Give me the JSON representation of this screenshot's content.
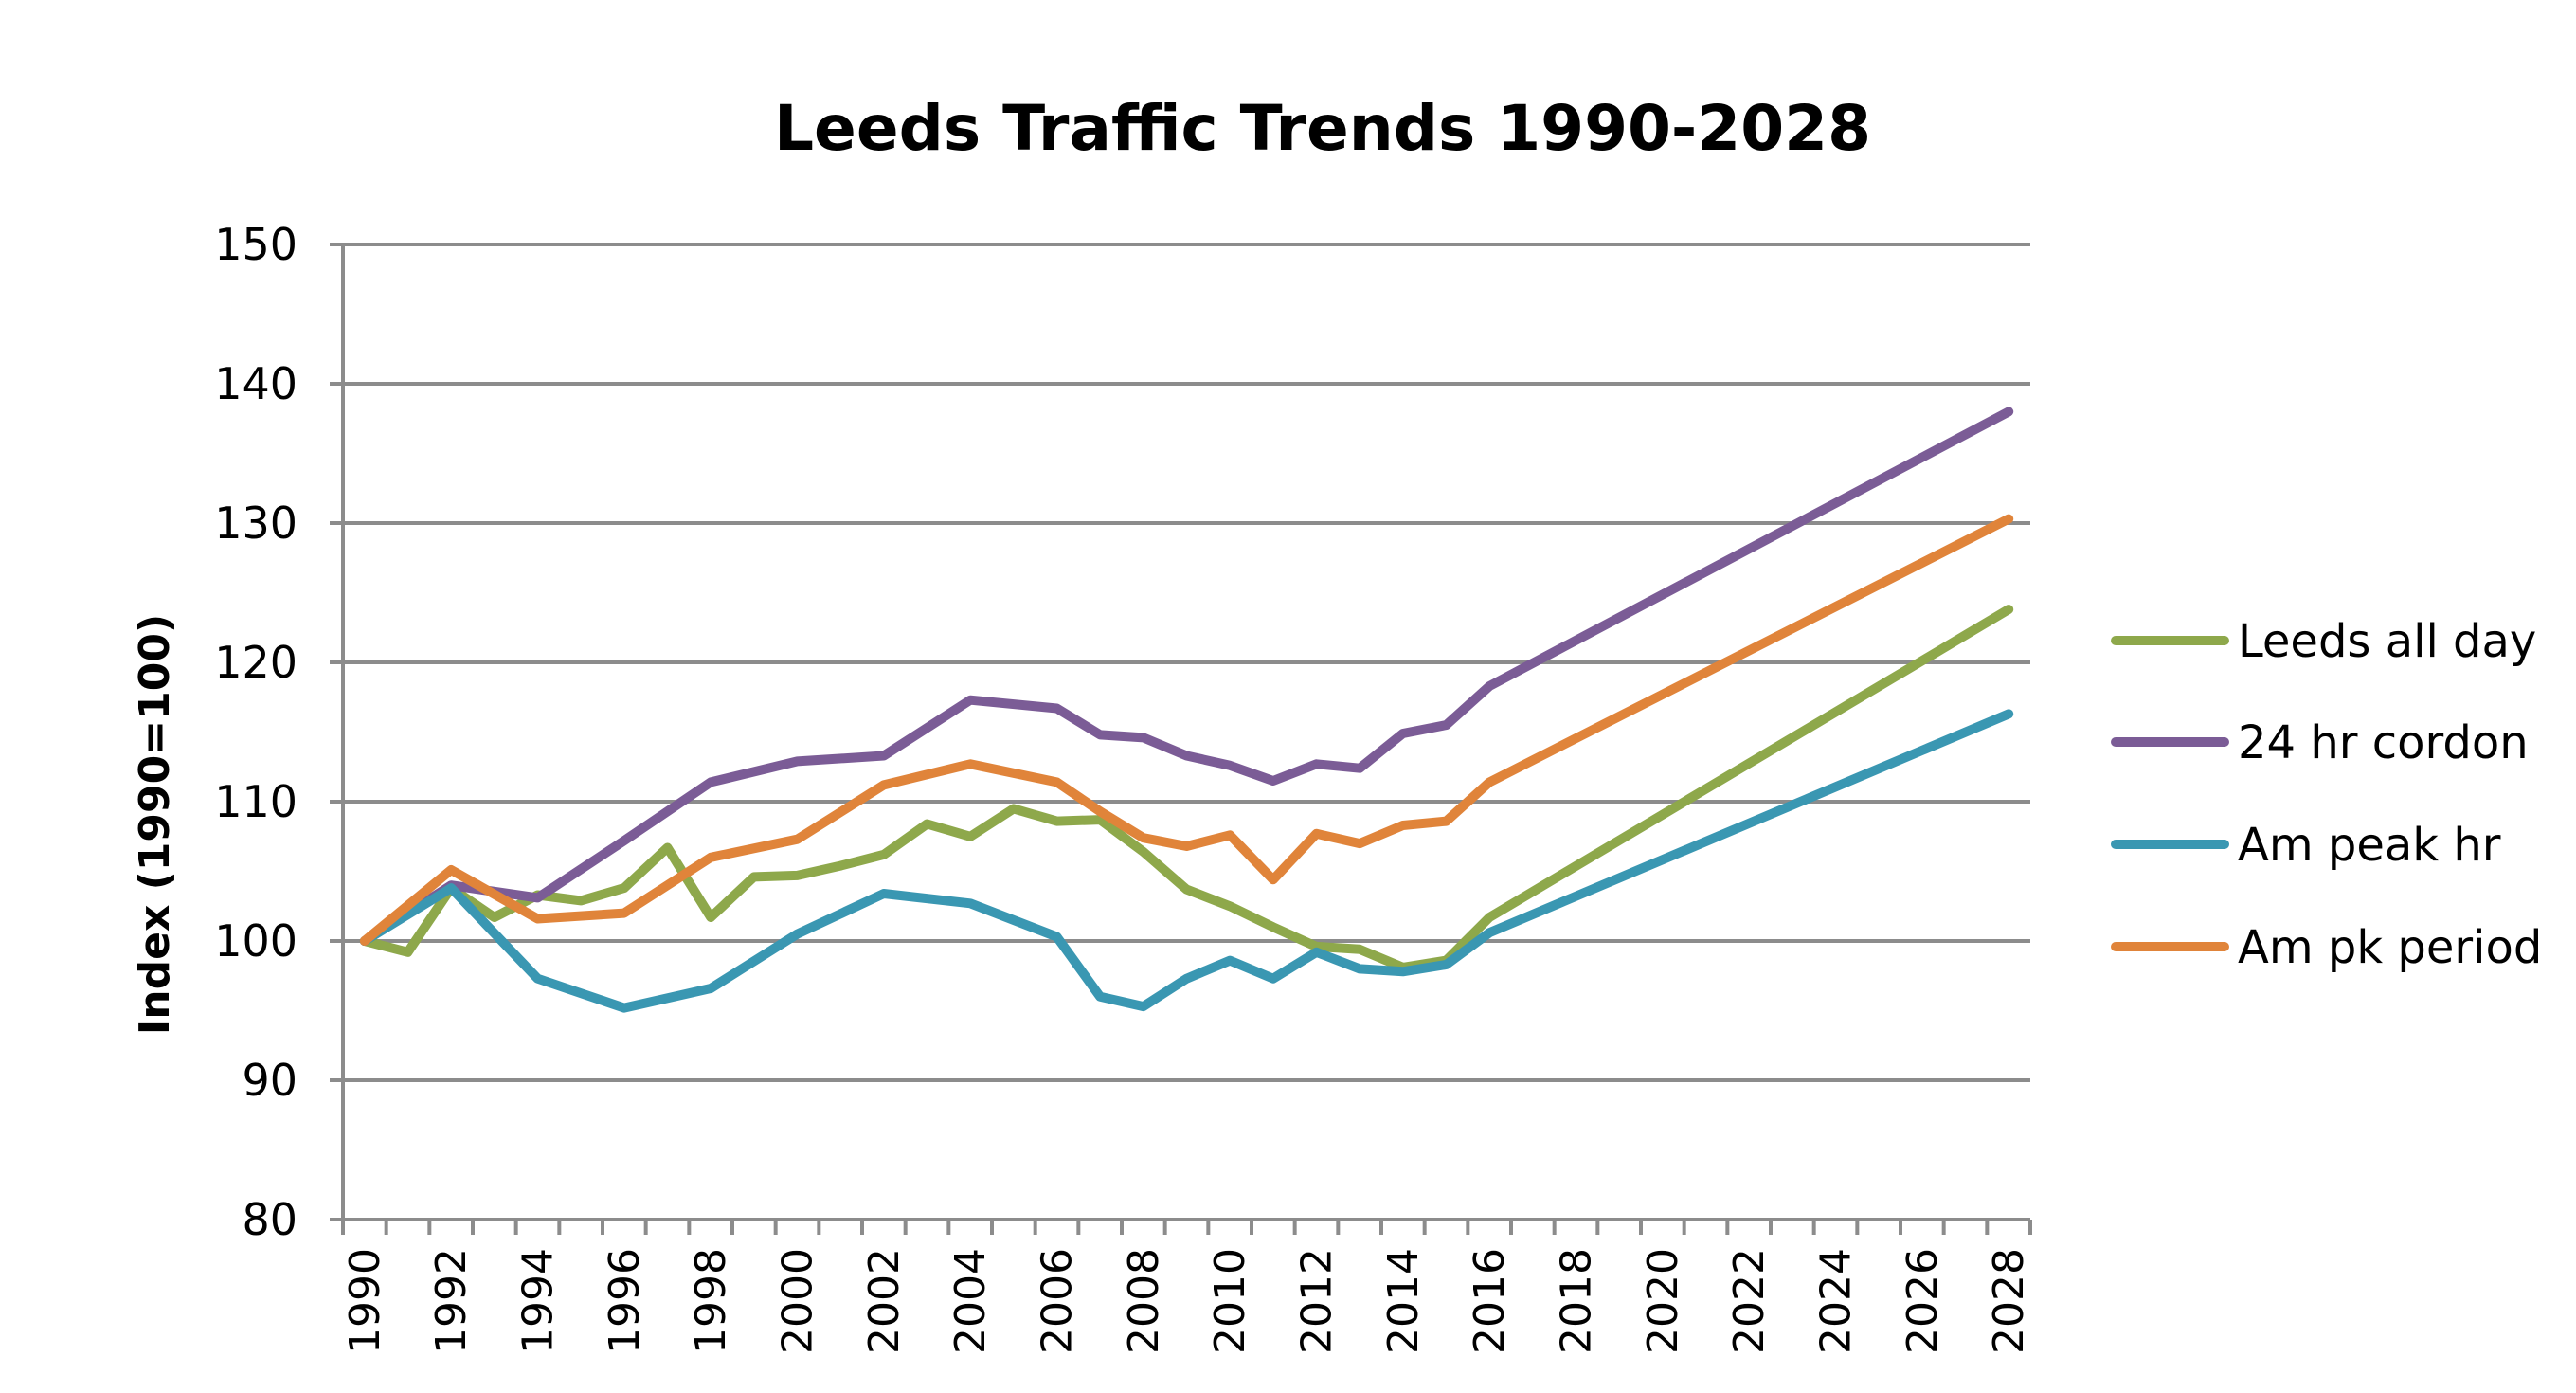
{
  "chart_data": {
    "type": "line",
    "title": "Leeds Traffic Trends 1990-2028",
    "ylabel": "Index (1990=100)",
    "xlabel": "",
    "xlim": [
      1990,
      2028
    ],
    "ylim": [
      80,
      150
    ],
    "yticks": [
      80,
      90,
      100,
      110,
      120,
      130,
      140,
      150
    ],
    "xticks": [
      1990,
      1992,
      1994,
      1996,
      1998,
      2000,
      2002,
      2004,
      2006,
      2008,
      2010,
      2012,
      2014,
      2016,
      2018,
      2020,
      2022,
      2024,
      2026,
      2028
    ],
    "grid": true,
    "legend": "right",
    "series": [
      {
        "name": "Leeds all day",
        "color": "#8EA84B",
        "x": [
          1990,
          1991,
          1992,
          1993,
          1994,
          1995,
          1996,
          1997,
          1998,
          1999,
          2000,
          2001,
          2002,
          2003,
          2004,
          2005,
          2006,
          2007,
          2008,
          2009,
          2010,
          2011,
          2012,
          2013,
          2014,
          2015,
          2016,
          2028
        ],
        "y": [
          100,
          99.2,
          103.8,
          101.7,
          103.3,
          102.9,
          103.8,
          106.7,
          101.7,
          104.6,
          104.7,
          105.4,
          106.2,
          108.4,
          107.5,
          109.5,
          108.6,
          108.7,
          106.4,
          103.7,
          102.5,
          101,
          99.6,
          99.4,
          98.1,
          98.6,
          101.7,
          123.8
        ]
      },
      {
        "name": "24 hr cordon",
        "color": "#7B5C96",
        "x": [
          1990,
          1992,
          1994,
          1996,
          1998,
          2000,
          2002,
          2004,
          2006,
          2007,
          2008,
          2009,
          2010,
          2011,
          2012,
          2013,
          2014,
          2015,
          2016,
          2028
        ],
        "y": [
          100,
          104,
          103.1,
          107.2,
          111.4,
          112.9,
          113.3,
          117.3,
          116.7,
          114.8,
          114.6,
          113.3,
          112.6,
          111.5,
          112.7,
          112.4,
          114.9,
          115.5,
          118.3,
          138
        ]
      },
      {
        "name": "Am peak hr",
        "color": "#3A97B2",
        "x": [
          1990,
          1992,
          1994,
          1996,
          1998,
          2000,
          2002,
          2004,
          2006,
          2007,
          2008,
          2009,
          2010,
          2011,
          2012,
          2013,
          2014,
          2015,
          2016,
          2028
        ],
        "y": [
          100,
          103.8,
          97.3,
          95.2,
          96.6,
          100.5,
          103.4,
          102.7,
          100.3,
          96,
          95.3,
          97.3,
          98.6,
          97.3,
          99.2,
          98,
          97.8,
          98.3,
          100.6,
          116.3
        ]
      },
      {
        "name": "Am pk period",
        "color": "#E0843A",
        "x": [
          1990,
          1992,
          1994,
          1996,
          1998,
          2000,
          2002,
          2004,
          2006,
          2007,
          2008,
          2009,
          2010,
          2011,
          2012,
          2013,
          2014,
          2015,
          2016,
          2028
        ],
        "y": [
          100,
          105.1,
          101.6,
          102,
          106,
          107.3,
          111.2,
          112.7,
          111.4,
          109.3,
          107.4,
          106.8,
          107.6,
          104.4,
          107.7,
          107,
          108.3,
          108.6,
          111.4,
          130.3
        ]
      }
    ]
  }
}
